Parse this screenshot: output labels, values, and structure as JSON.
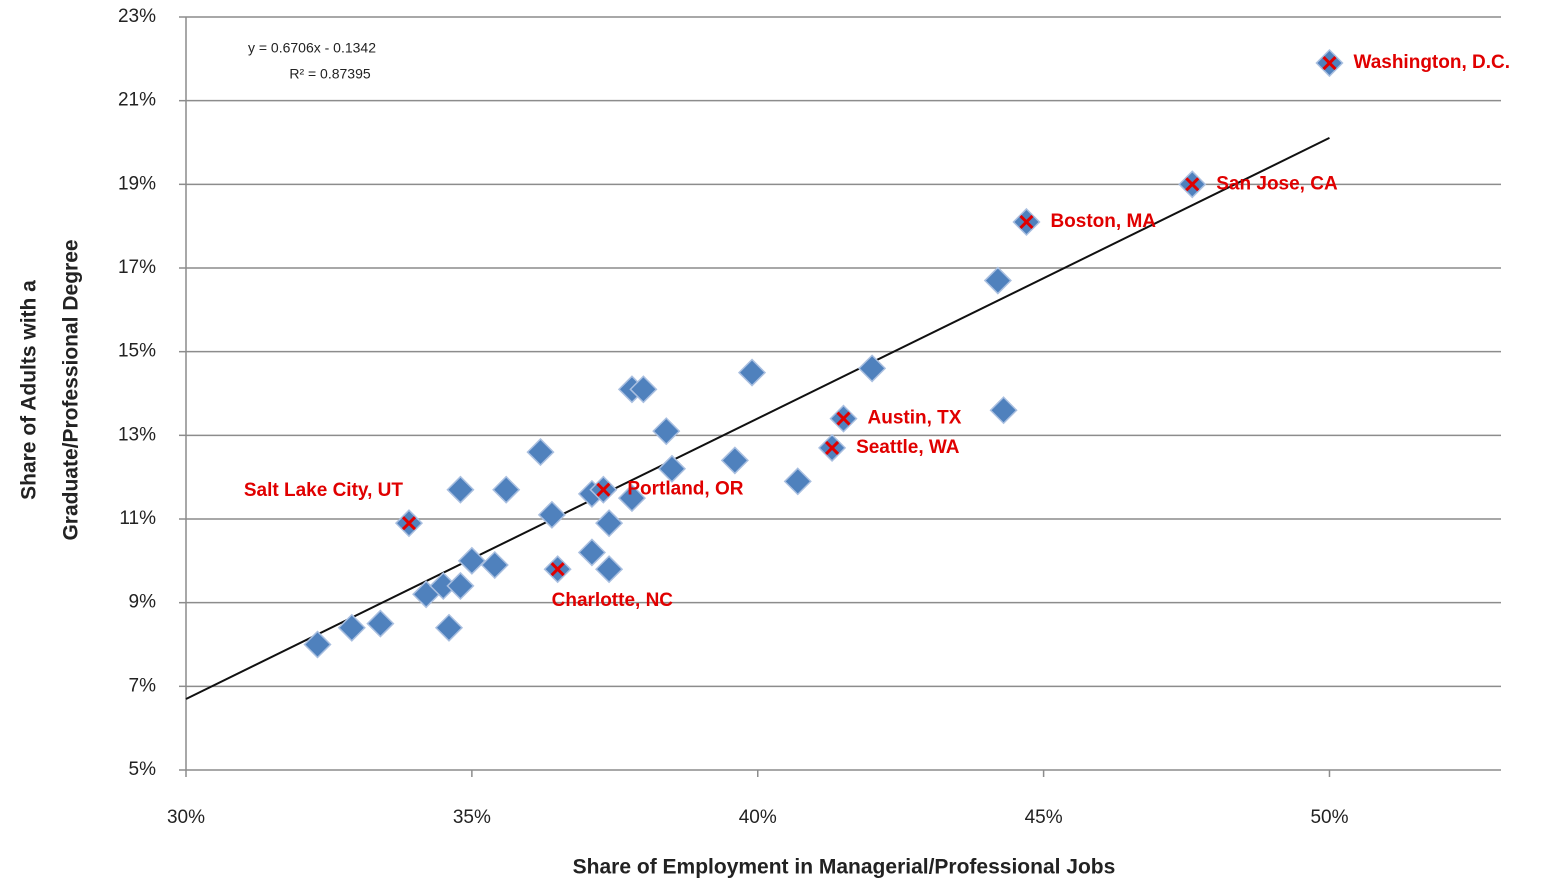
{
  "chart_data": {
    "type": "scatter",
    "x_label": "Share of Employment in Managerial/Professional Jobs",
    "y_label": [
      "Share of Adults with a",
      "Graduate/Professional Degree"
    ],
    "xlim": [
      30,
      53
    ],
    "ylim": [
      5,
      23
    ],
    "xticks": [
      {
        "value": 30,
        "label": "30%"
      },
      {
        "value": 35,
        "label": "35%"
      },
      {
        "value": 40,
        "label": "40%"
      },
      {
        "value": 45,
        "label": "45%"
      },
      {
        "value": 50,
        "label": "50%"
      }
    ],
    "yticks": [
      {
        "value": 5,
        "label": "5%"
      },
      {
        "value": 7,
        "label": "7%"
      },
      {
        "value": 9,
        "label": "9%"
      },
      {
        "value": 11,
        "label": "11%"
      },
      {
        "value": 13,
        "label": "13%"
      },
      {
        "value": 15,
        "label": "15%"
      },
      {
        "value": 17,
        "label": "17%"
      },
      {
        "value": 19,
        "label": "19%"
      },
      {
        "value": 21,
        "label": "21%"
      },
      {
        "value": 23,
        "label": "23%"
      }
    ],
    "grid": true,
    "series": [
      {
        "color": "#4f81bd",
        "x": [
          32.3,
          32.9,
          33.4,
          33.9,
          34.2,
          34.5,
          34.8,
          34.6,
          34.8,
          35.0,
          35.4,
          35.6,
          36.2,
          36.4,
          36.5,
          37.1,
          37.1,
          37.3,
          37.4,
          37.4,
          37.8,
          37.8,
          38.0,
          38.4,
          38.5,
          39.6,
          39.9,
          40.7,
          41.3,
          41.5,
          42.0,
          44.2,
          44.3,
          44.7,
          47.6,
          50.0
        ],
        "values": [
          8.0,
          8.4,
          8.5,
          10.9,
          9.2,
          9.4,
          9.4,
          8.4,
          11.7,
          10.0,
          9.9,
          11.7,
          12.6,
          11.1,
          9.8,
          10.2,
          11.6,
          11.7,
          10.9,
          9.8,
          11.5,
          14.1,
          14.1,
          13.1,
          12.2,
          12.4,
          14.5,
          11.9,
          12.7,
          13.4,
          14.6,
          16.7,
          13.6,
          18.1,
          19.0,
          21.9
        ],
        "point_labels": [
          null,
          null,
          null,
          "Salt Lake City, UT",
          null,
          null,
          null,
          null,
          null,
          null,
          null,
          null,
          null,
          null,
          "Charlotte, NC",
          null,
          null,
          "Portland, OR",
          null,
          null,
          null,
          null,
          null,
          null,
          null,
          null,
          null,
          null,
          "Seattle, WA",
          "Austin, TX",
          null,
          null,
          null,
          "Boston, MA",
          "San Jose, CA",
          "Washington, D.C."
        ],
        "label_color": "#e00000"
      }
    ],
    "trendline": {
      "slope": 0.6706,
      "intercept": -0.1342,
      "equation": "y = 0.6706x - 0.1342",
      "r2": "R² = 0.87395",
      "color": "#111111"
    }
  }
}
